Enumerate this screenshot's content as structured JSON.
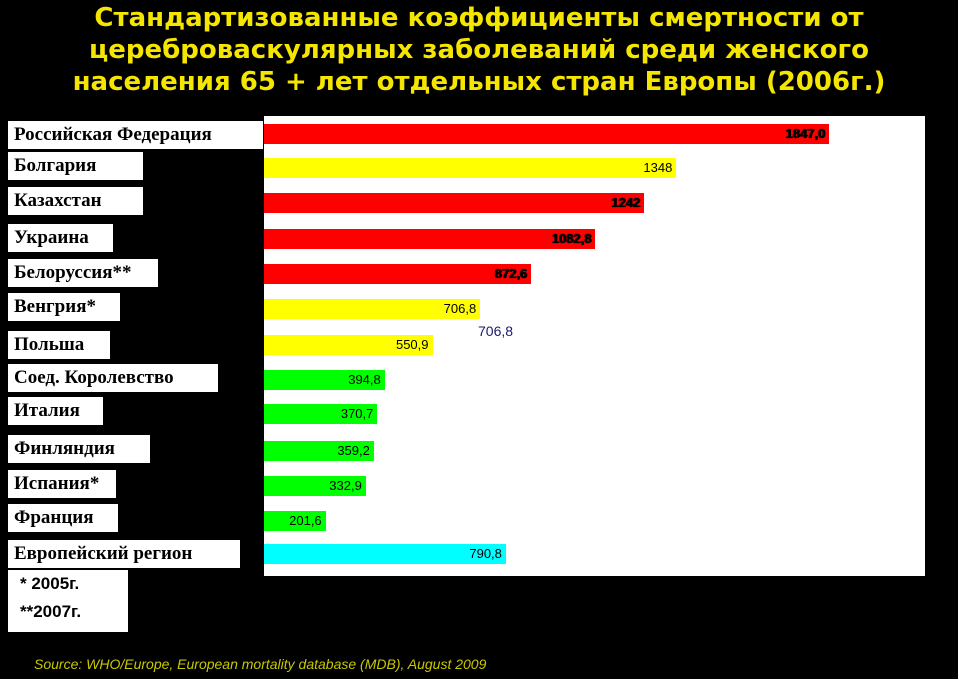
{
  "title_lines": [
    "Стандартизованные коэффициенты смертности от",
    "цереброваскулярных заболеваний среди женского",
    "населения 65 + лет отдельных стран Европы (2006г.)"
  ],
  "colors": {
    "red": "#ff0000",
    "yellow": "#ffff00",
    "green": "#00ff00",
    "cyan": "#00ffff",
    "background": "#000000",
    "title": "#f5e600",
    "source": "#c8c800"
  },
  "chart_data": {
    "type": "bar",
    "orientation": "horizontal",
    "categories": [
      "Российская Федерация",
      "Болгария",
      "Казахстан",
      "Украина",
      "Белоруссия**",
      "Венгрия*",
      "Польша",
      "Соед. Королевство",
      "Италия",
      "Финляндия",
      "Испания*",
      "Франция",
      "Европейский регион"
    ],
    "values": [
      1847.0,
      1348,
      1242,
      1082.8,
      872.6,
      706.8,
      550.9,
      394.8,
      370.7,
      359.2,
      332.9,
      201.6,
      790.8
    ],
    "value_labels": [
      "1847,0",
      "1348",
      "1242",
      "1082,8",
      "872,6",
      "706,8",
      "550,9",
      "394,8",
      "370,7",
      "359,2",
      "332,9",
      "201,6",
      "790,8"
    ],
    "bar_colors": [
      "red",
      "yellow",
      "red",
      "red",
      "red",
      "yellow",
      "yellow",
      "green",
      "green",
      "green",
      "green",
      "green",
      "cyan"
    ],
    "xlim": [
      0,
      2000
    ],
    "grid": false,
    "legend": "none",
    "annotation": "706,8"
  },
  "notes": [
    "* 2005г.",
    "**2007г."
  ],
  "source": "Source: WHO/Europe, European mortality database (MDB), August  2009"
}
